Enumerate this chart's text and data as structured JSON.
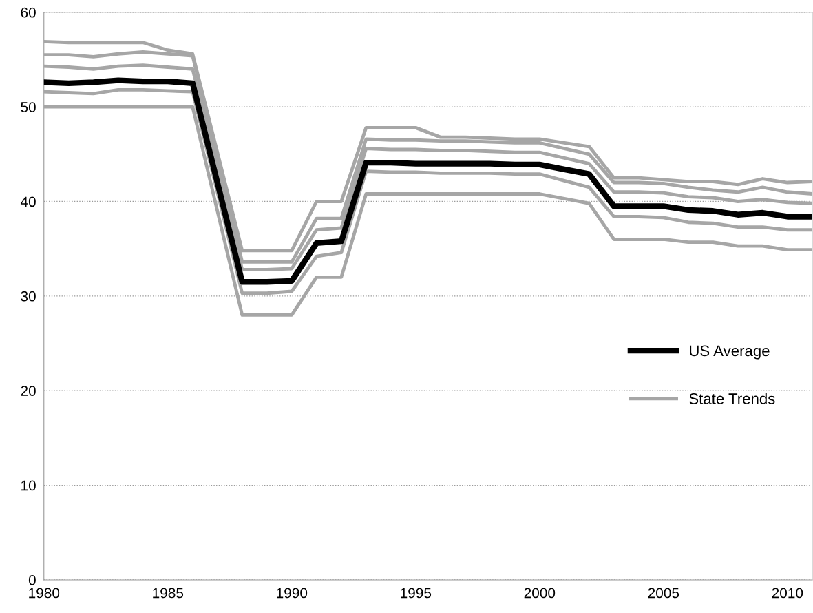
{
  "chart_data": {
    "type": "line",
    "x": [
      1980,
      1981,
      1982,
      1983,
      1984,
      1985,
      1986,
      1987,
      1988,
      1989,
      1990,
      1991,
      1992,
      1993,
      1994,
      1995,
      1996,
      1997,
      1998,
      1999,
      2000,
      2001,
      2002,
      2003,
      2004,
      2005,
      2006,
      2007,
      2008,
      2009,
      2010,
      2011
    ],
    "series": [
      {
        "name": "US Average",
        "color": "#000000",
        "values": [
          52.6,
          52.5,
          52.6,
          52.8,
          52.7,
          52.7,
          52.5,
          42.0,
          31.5,
          31.5,
          31.6,
          35.6,
          35.8,
          44.1,
          44.1,
          44.0,
          44.0,
          44.0,
          44.0,
          43.9,
          43.9,
          43.4,
          42.9,
          39.5,
          39.5,
          39.5,
          39.1,
          39.0,
          38.6,
          38.8,
          38.4,
          38.4
        ]
      },
      {
        "name": "State Trends",
        "color": "#a6a6a6",
        "values": [
          56.9,
          56.8,
          56.8,
          56.8,
          56.8,
          56.0,
          55.6,
          45.2,
          34.8,
          34.8,
          34.8,
          40.0,
          40.0,
          47.8,
          47.8,
          47.8,
          46.8,
          46.8,
          46.7,
          46.6,
          46.6,
          46.2,
          45.8,
          42.5,
          42.5,
          42.3,
          42.1,
          42.1,
          41.8,
          42.4,
          42.0,
          42.1
        ]
      },
      {
        "color": "#a6a6a6",
        "values": [
          55.5,
          55.5,
          55.3,
          55.6,
          55.8,
          55.6,
          55.4,
          44.5,
          33.6,
          33.6,
          33.6,
          38.2,
          38.2,
          46.6,
          46.5,
          46.5,
          46.4,
          46.4,
          46.3,
          46.2,
          46.2,
          45.6,
          45.0,
          42.0,
          42.0,
          41.9,
          41.5,
          41.2,
          41.0,
          41.5,
          41.0,
          40.8
        ]
      },
      {
        "color": "#a6a6a6",
        "values": [
          54.3,
          54.2,
          54.0,
          54.3,
          54.4,
          54.2,
          54.0,
          43.4,
          32.8,
          32.8,
          32.9,
          37.0,
          37.2,
          45.6,
          45.5,
          45.5,
          45.4,
          45.4,
          45.3,
          45.2,
          45.2,
          44.6,
          44.0,
          41.0,
          41.0,
          40.9,
          40.5,
          40.4,
          40.0,
          40.2,
          39.9,
          39.8
        ]
      },
      {
        "color": "#a6a6a6",
        "values": [
          51.6,
          51.5,
          51.4,
          51.8,
          51.8,
          51.7,
          51.6,
          41.0,
          30.3,
          30.3,
          30.5,
          34.2,
          34.6,
          43.2,
          43.1,
          43.1,
          43.0,
          43.0,
          43.0,
          42.9,
          42.9,
          42.2,
          41.5,
          38.4,
          38.4,
          38.3,
          37.8,
          37.7,
          37.3,
          37.3,
          37.0,
          37.0
        ]
      },
      {
        "color": "#a6a6a6",
        "values": [
          50.0,
          50.0,
          50.0,
          50.0,
          50.0,
          50.0,
          50.0,
          39.0,
          28.0,
          28.0,
          28.0,
          32.0,
          32.0,
          40.8,
          40.8,
          40.8,
          40.8,
          40.8,
          40.8,
          40.8,
          40.8,
          40.3,
          39.8,
          36.0,
          36.0,
          36.0,
          35.7,
          35.7,
          35.3,
          35.3,
          34.9,
          34.9
        ]
      }
    ],
    "xlim": [
      1980,
      2011
    ],
    "xticks": [
      1980,
      1985,
      1990,
      1995,
      2000,
      2005,
      2010
    ],
    "ylim": [
      0,
      60
    ],
    "yticks": [
      0,
      10,
      20,
      30,
      40,
      50,
      60
    ],
    "grid": "y",
    "legend": "bottom right",
    "marker": "none",
    "line_style": "solid"
  }
}
